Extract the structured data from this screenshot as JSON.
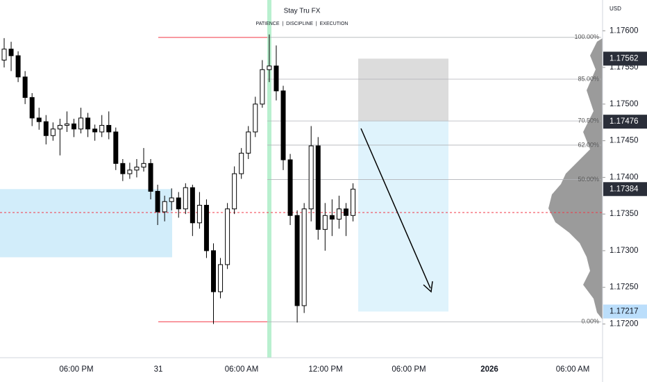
{
  "chart_data": {
    "type": "candlestick",
    "title": "Stay Tru FX",
    "subtitle": "PATIENCE  |  DISCIPLINE  |  EXECUTION",
    "currency": "USD",
    "ylim": [
      1.17154,
      1.17642
    ],
    "yticks": [
      {
        "value": 1.172,
        "label": "1.17200"
      },
      {
        "value": 1.1725,
        "label": "1.17250"
      },
      {
        "value": 1.173,
        "label": "1.17300"
      },
      {
        "value": 1.1735,
        "label": "1.17350"
      },
      {
        "value": 1.174,
        "label": "1.17400"
      },
      {
        "value": 1.1745,
        "label": "1.17450"
      },
      {
        "value": 1.175,
        "label": "1.17500"
      },
      {
        "value": 1.1755,
        "label": "1.17550"
      },
      {
        "value": 1.176,
        "label": "1.17600"
      }
    ],
    "x_labels": [
      "06:00 PM",
      "31",
      "06:00 AM",
      "12:00 PM",
      "06:00 PM",
      "2026",
      "06:00 AM"
    ],
    "candles": [
      [
        1.1756,
        1.1759,
        1.1755,
        1.17575
      ],
      [
        1.17575,
        1.17585,
        1.17545,
        1.17566
      ],
      [
        1.17566,
        1.17572,
        1.1753,
        1.17537
      ],
      [
        1.17537,
        1.17545,
        1.175,
        1.17509
      ],
      [
        1.17509,
        1.17515,
        1.1747,
        1.17481
      ],
      [
        1.17481,
        1.17495,
        1.17465,
        1.17476
      ],
      [
        1.17476,
        1.17485,
        1.17445,
        1.17457
      ],
      [
        1.17457,
        1.17475,
        1.1745,
        1.17466
      ],
      [
        1.17466,
        1.1748,
        1.1743,
        1.17471
      ],
      [
        1.17471,
        1.1749,
        1.17462,
        1.17473
      ],
      [
        1.17473,
        1.1748,
        1.17455,
        1.17466
      ],
      [
        1.17466,
        1.17495,
        1.1746,
        1.17481
      ],
      [
        1.17481,
        1.17488,
        1.17455,
        1.17466
      ],
      [
        1.17466,
        1.17472,
        1.1745,
        1.17462
      ],
      [
        1.17462,
        1.17485,
        1.17455,
        1.17471
      ],
      [
        1.17471,
        1.1749,
        1.17452,
        1.17462
      ],
      [
        1.17462,
        1.17468,
        1.1741,
        1.17419
      ],
      [
        1.17419,
        1.17425,
        1.17395,
        1.17405
      ],
      [
        1.17405,
        1.1742,
        1.17398,
        1.1741
      ],
      [
        1.1741,
        1.17425,
        1.174,
        1.17414
      ],
      [
        1.17414,
        1.1744,
        1.17408,
        1.17419
      ],
      [
        1.17419,
        1.17425,
        1.1737,
        1.17381
      ],
      [
        1.17381,
        1.1739,
        1.17335,
        1.17353
      ],
      [
        1.17353,
        1.17375,
        1.1734,
        1.17367
      ],
      [
        1.17367,
        1.17385,
        1.17355,
        1.17372
      ],
      [
        1.17372,
        1.1738,
        1.17345,
        1.17357
      ],
      [
        1.17357,
        1.17392,
        1.1735,
        1.17386
      ],
      [
        1.17386,
        1.1739,
        1.1732,
        1.17338
      ],
      [
        1.17338,
        1.1738,
        1.1733,
        1.17362
      ],
      [
        1.17362,
        1.1737,
        1.1729,
        1.173
      ],
      [
        1.173,
        1.1731,
        1.172,
        1.17244
      ],
      [
        1.17244,
        1.1729,
        1.17235,
        1.17281
      ],
      [
        1.17281,
        1.17365,
        1.17275,
        1.17357
      ],
      [
        1.17357,
        1.17415,
        1.1735,
        1.17405
      ],
      [
        1.17405,
        1.1744,
        1.17398,
        1.17433
      ],
      [
        1.17433,
        1.1747,
        1.17425,
        1.17462
      ],
      [
        1.17462,
        1.1751,
        1.17455,
        1.175
      ],
      [
        1.175,
        1.1756,
        1.17495,
        1.17547
      ],
      [
        1.17547,
        1.17595,
        1.1753,
        1.17552
      ],
      [
        1.17552,
        1.1758,
        1.17505,
        1.17518
      ],
      [
        1.17518,
        1.17525,
        1.1741,
        1.17424
      ],
      [
        1.17424,
        1.17432,
        1.17335,
        1.17348
      ],
      [
        1.17348,
        1.17355,
        1.17202,
        1.17225
      ],
      [
        1.17225,
        1.17365,
        1.17215,
        1.17357
      ],
      [
        1.17357,
        1.1747,
        1.1734,
        1.17443
      ],
      [
        1.17443,
        1.17455,
        1.17315,
        1.17329
      ],
      [
        1.17329,
        1.17365,
        1.173,
        1.17348
      ],
      [
        1.17348,
        1.1737,
        1.1732,
        1.17343
      ],
      [
        1.17343,
        1.17375,
        1.1733,
        1.17357
      ],
      [
        1.17357,
        1.17365,
        1.1732,
        1.17348
      ],
      [
        1.17348,
        1.17392,
        1.1734,
        1.17384
      ]
    ],
    "fib_levels": [
      {
        "label": "100.00%",
        "price": 1.17591
      },
      {
        "label": "85.00%",
        "price": 1.17534
      },
      {
        "label": "70.50%",
        "price": 1.17477
      },
      {
        "label": "62.00%",
        "price": 1.17444
      },
      {
        "label": "50.00%",
        "price": 1.17397
      },
      {
        "label": "0.00%",
        "price": 1.17203
      }
    ],
    "price_badges": [
      {
        "value": 1.17562,
        "color": "#2a2e39"
      },
      {
        "value": 1.17476,
        "color": "#2a2e39"
      },
      {
        "value": 1.17384,
        "color": "#2a2e39"
      },
      {
        "value": 1.17217,
        "color": "#bbdefb"
      }
    ],
    "demand_zone": [
      1.17384,
      1.17291
    ],
    "position": {
      "stop": [
        1.17562,
        1.17477
      ],
      "target": [
        1.17477,
        1.17217
      ]
    },
    "price_line": 1.17352
  }
}
